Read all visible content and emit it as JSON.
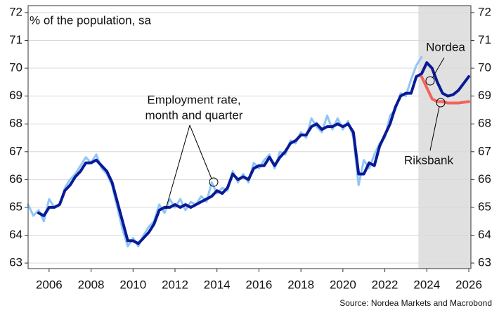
{
  "chart_data": {
    "type": "line",
    "title": "% of the population, sa",
    "source": "Source: Nordea Markets and Macrobond",
    "annotations": [
      "Employment rate,",
      "month and quarter",
      "Nordea",
      "Riksbank"
    ],
    "xlim": [
      2005,
      2026.1
    ],
    "xticks": [
      2006,
      2008,
      2010,
      2012,
      2014,
      2016,
      2018,
      2020,
      2022,
      2024,
      2026
    ],
    "ylim": [
      62.8,
      72.25
    ],
    "yticks": [
      63,
      64,
      65,
      66,
      67,
      68,
      69,
      70,
      71,
      72
    ],
    "y2lim": [
      62.8,
      72.25
    ],
    "y2ticks": [
      63,
      64,
      65,
      66,
      67,
      68,
      69,
      70,
      71,
      72
    ],
    "grid": true,
    "forecast_span": [
      2023.6,
      2026.1
    ],
    "forecast_color": "#e0e0e0",
    "series": [
      {
        "color": "#8ec6f5",
        "width": 3,
        "x": [
          2005,
          2005.25,
          2005.5,
          2005.75,
          2006,
          2006.25,
          2006.5,
          2006.75,
          2007,
          2007.25,
          2007.5,
          2007.75,
          2008,
          2008.25,
          2008.5,
          2008.75,
          2009,
          2009.25,
          2009.5,
          2009.75,
          2010,
          2010.25,
          2010.5,
          2010.75,
          2011,
          2011.25,
          2011.5,
          2011.75,
          2012,
          2012.25,
          2012.5,
          2012.75,
          2013,
          2013.25,
          2013.5,
          2013.75,
          2014,
          2014.25,
          2014.5,
          2014.75,
          2015,
          2015.25,
          2015.5,
          2015.75,
          2016,
          2016.25,
          2016.5,
          2016.75,
          2017,
          2017.25,
          2017.5,
          2017.75,
          2018,
          2018.25,
          2018.5,
          2018.75,
          2019,
          2019.25,
          2019.5,
          2019.75,
          2020,
          2020.25,
          2020.5,
          2020.75,
          2021,
          2021.25,
          2021.5,
          2021.75,
          2022,
          2022.25,
          2022.5,
          2022.75,
          2023,
          2023.25,
          2023.5,
          2023.75
        ],
        "values": [
          65.1,
          64.7,
          64.9,
          64.5,
          65.3,
          65.0,
          65.1,
          65.7,
          66.0,
          66.2,
          66.5,
          66.8,
          66.6,
          66.9,
          66.4,
          66.2,
          65.8,
          65.0,
          64.2,
          63.6,
          63.9,
          63.6,
          64.0,
          64.3,
          64.5,
          65.1,
          64.8,
          65.3,
          65.0,
          65.3,
          64.9,
          65.2,
          65.1,
          65.4,
          65.2,
          65.9,
          65.5,
          65.7,
          65.6,
          66.3,
          65.9,
          66.2,
          65.9,
          66.6,
          66.4,
          66.7,
          66.9,
          66.4,
          67.0,
          66.9,
          67.4,
          67.3,
          67.7,
          67.5,
          68.2,
          67.9,
          67.7,
          68.3,
          67.8,
          68.2,
          67.8,
          68.1,
          67.5,
          65.8,
          66.7,
          66.4,
          66.9,
          67.3,
          67.5,
          68.3,
          68.5,
          69.1,
          69.0,
          69.6,
          70.1,
          70.4
        ]
      },
      {
        "color": "#0a1a96",
        "width": 4,
        "x": [
          2005.5,
          2005.75,
          2006,
          2006.25,
          2006.5,
          2006.75,
          2007,
          2007.25,
          2007.5,
          2007.75,
          2008,
          2008.25,
          2008.5,
          2008.75,
          2009,
          2009.25,
          2009.5,
          2009.75,
          2010,
          2010.25,
          2010.5,
          2010.75,
          2011,
          2011.25,
          2011.5,
          2011.75,
          2012,
          2012.25,
          2012.5,
          2012.75,
          2013,
          2013.25,
          2013.5,
          2013.75,
          2014,
          2014.25,
          2014.5,
          2014.75,
          2015,
          2015.25,
          2015.5,
          2015.75,
          2016,
          2016.25,
          2016.5,
          2016.75,
          2017,
          2017.25,
          2017.5,
          2017.75,
          2018,
          2018.25,
          2018.5,
          2018.75,
          2019,
          2019.25,
          2019.5,
          2019.75,
          2020,
          2020.25,
          2020.5,
          2020.75,
          2021,
          2021.25,
          2021.5,
          2021.75,
          2022,
          2022.25,
          2022.5,
          2022.75,
          2023,
          2023.25,
          2023.5,
          2023.75,
          2024,
          2024.25
        ],
        "values": [
          64.8,
          64.7,
          65.0,
          65.0,
          65.1,
          65.6,
          65.8,
          66.1,
          66.3,
          66.6,
          66.6,
          66.7,
          66.5,
          66.3,
          65.9,
          65.2,
          64.5,
          63.8,
          63.8,
          63.7,
          63.9,
          64.1,
          64.4,
          64.9,
          65.0,
          65.0,
          65.1,
          65.0,
          65.1,
          65.0,
          65.1,
          65.2,
          65.3,
          65.4,
          65.6,
          65.5,
          65.7,
          66.2,
          66.0,
          66.1,
          66.0,
          66.4,
          66.5,
          66.5,
          66.8,
          66.5,
          66.8,
          67.0,
          67.3,
          67.4,
          67.6,
          67.6,
          67.9,
          68.0,
          67.8,
          67.9,
          67.9,
          68.0,
          67.9,
          68.0,
          67.7,
          66.2,
          66.2,
          66.6,
          66.5,
          67.2,
          67.6,
          68.0,
          68.6,
          69.0,
          69.1,
          69.1,
          69.7,
          69.8,
          70.2,
          70.0
        ]
      },
      {
        "name": "Nordea",
        "color": "#0a1a96",
        "width": 4,
        "x": [
          2024.25,
          2024.5,
          2024.75,
          2025,
          2025.25,
          2025.5,
          2025.75,
          2026
        ],
        "values": [
          70.0,
          69.5,
          69.1,
          69.0,
          69.05,
          69.2,
          69.45,
          69.7
        ]
      },
      {
        "name": "Riksbank",
        "color": "#f2645a",
        "width": 4,
        "x": [
          2023.75,
          2024,
          2024.25,
          2024.5,
          2024.75,
          2025,
          2025.5,
          2026
        ],
        "values": [
          69.7,
          69.3,
          68.9,
          68.8,
          68.8,
          68.75,
          68.75,
          68.8
        ]
      }
    ]
  }
}
